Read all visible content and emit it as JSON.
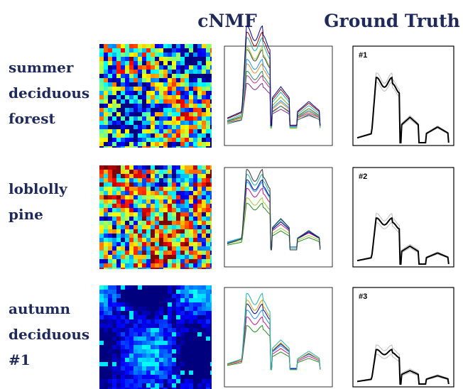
{
  "header": {
    "columns": [
      "cNMF",
      "Ground Truth"
    ]
  },
  "rows": [
    {
      "label": [
        "summer",
        "deciduous",
        "forest"
      ],
      "truth": "#1"
    },
    {
      "label": [
        "loblolly",
        "pine"
      ],
      "truth": "#2"
    },
    {
      "label": [
        "autumn",
        "deciduous",
        "#1"
      ],
      "truth": "#3"
    }
  ]
}
